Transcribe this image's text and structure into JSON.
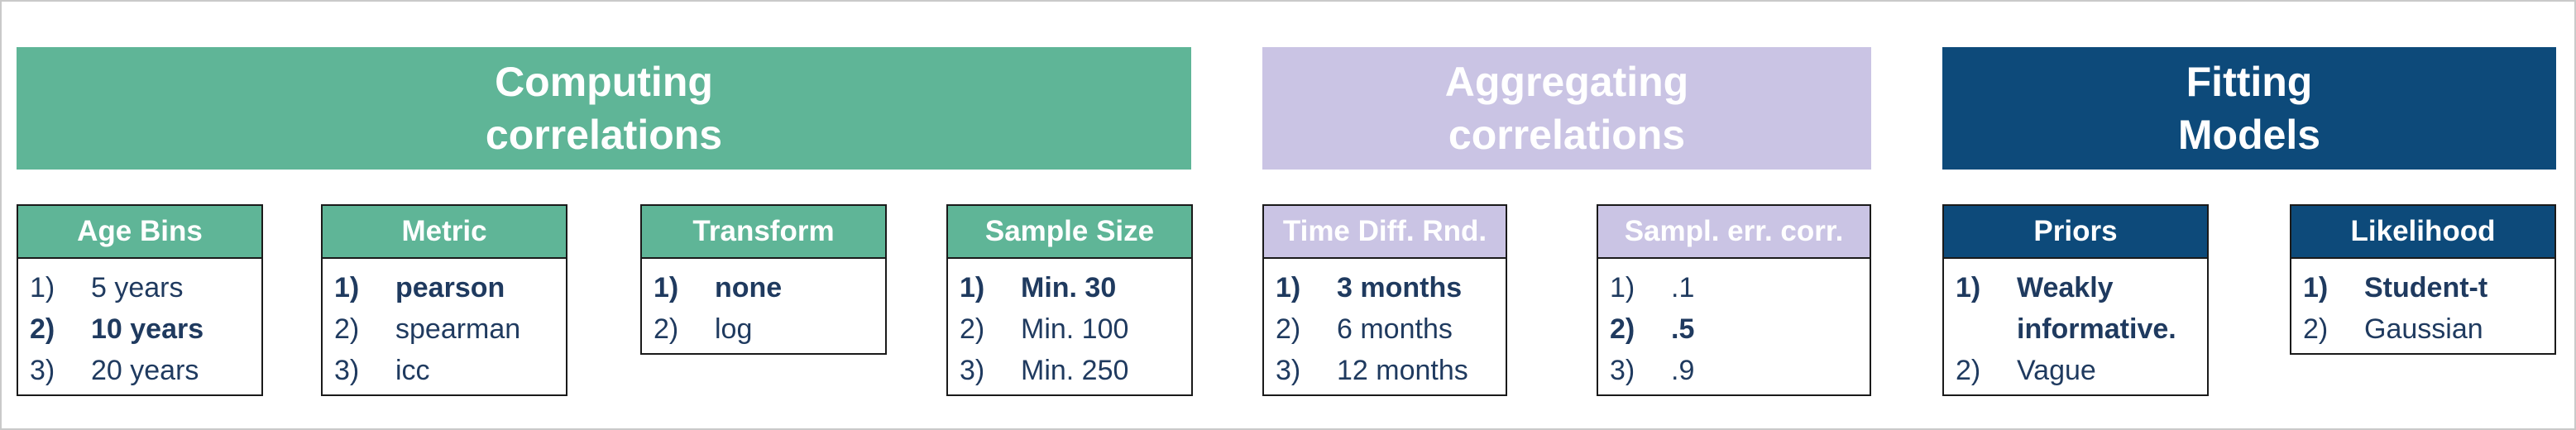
{
  "stages": [
    {
      "title_line1": "Computing",
      "title_line2": "correlations",
      "color": "#5fb597"
    },
    {
      "title_line1": "Aggregating",
      "title_line2": "correlations",
      "color": "#cac4e4"
    },
    {
      "title_line1": "Fitting",
      "title_line2": "Models",
      "color": "#0d4a7a"
    }
  ],
  "cards": [
    {
      "header": "Age Bins",
      "color": "#5fb597",
      "options": [
        {
          "num": "1)",
          "label": "5 years"
        },
        {
          "num": "2)",
          "label": "10 years",
          "selected": true
        },
        {
          "num": "3)",
          "label": "20 years"
        }
      ]
    },
    {
      "header": "Metric",
      "color": "#5fb597",
      "options": [
        {
          "num": "1)",
          "label": "pearson",
          "selected": true
        },
        {
          "num": "2)",
          "label": "spearman"
        },
        {
          "num": "3)",
          "label": "icc"
        }
      ]
    },
    {
      "header": "Transform",
      "color": "#5fb597",
      "options": [
        {
          "num": "1)",
          "label": "none",
          "selected": true
        },
        {
          "num": "2)",
          "label": "log"
        }
      ]
    },
    {
      "header": "Sample Size",
      "color": "#5fb597",
      "options": [
        {
          "num": "1)",
          "label": "Min. 30",
          "selected": true
        },
        {
          "num": "2)",
          "label": "Min. 100"
        },
        {
          "num": "3)",
          "label": "Min. 250"
        }
      ]
    },
    {
      "header": "Time Diff. Rnd.",
      "color": "#cac4e4",
      "options": [
        {
          "num": "1)",
          "label": "3 months",
          "selected": true
        },
        {
          "num": "2)",
          "label": "6 months"
        },
        {
          "num": "3)",
          "label": "12 months"
        }
      ]
    },
    {
      "header": "Sampl. err. corr.",
      "color": "#cac4e4",
      "options": [
        {
          "num": "1)",
          "label": ".1"
        },
        {
          "num": "2)",
          "label": ".5",
          "selected": true
        },
        {
          "num": "3)",
          "label": ".9"
        }
      ]
    },
    {
      "header": "Priors",
      "color": "#0d4a7a",
      "options": [
        {
          "num": "1)",
          "label": "Weakly informative.",
          "selected": true
        },
        {
          "num": "2)",
          "label": "Vague"
        }
      ]
    },
    {
      "header": "Likelihood",
      "color": "#0d4a7a",
      "options": [
        {
          "num": "1)",
          "label": "Student-t",
          "selected": true
        },
        {
          "num": "2)",
          "label": "Gaussian"
        }
      ]
    }
  ]
}
